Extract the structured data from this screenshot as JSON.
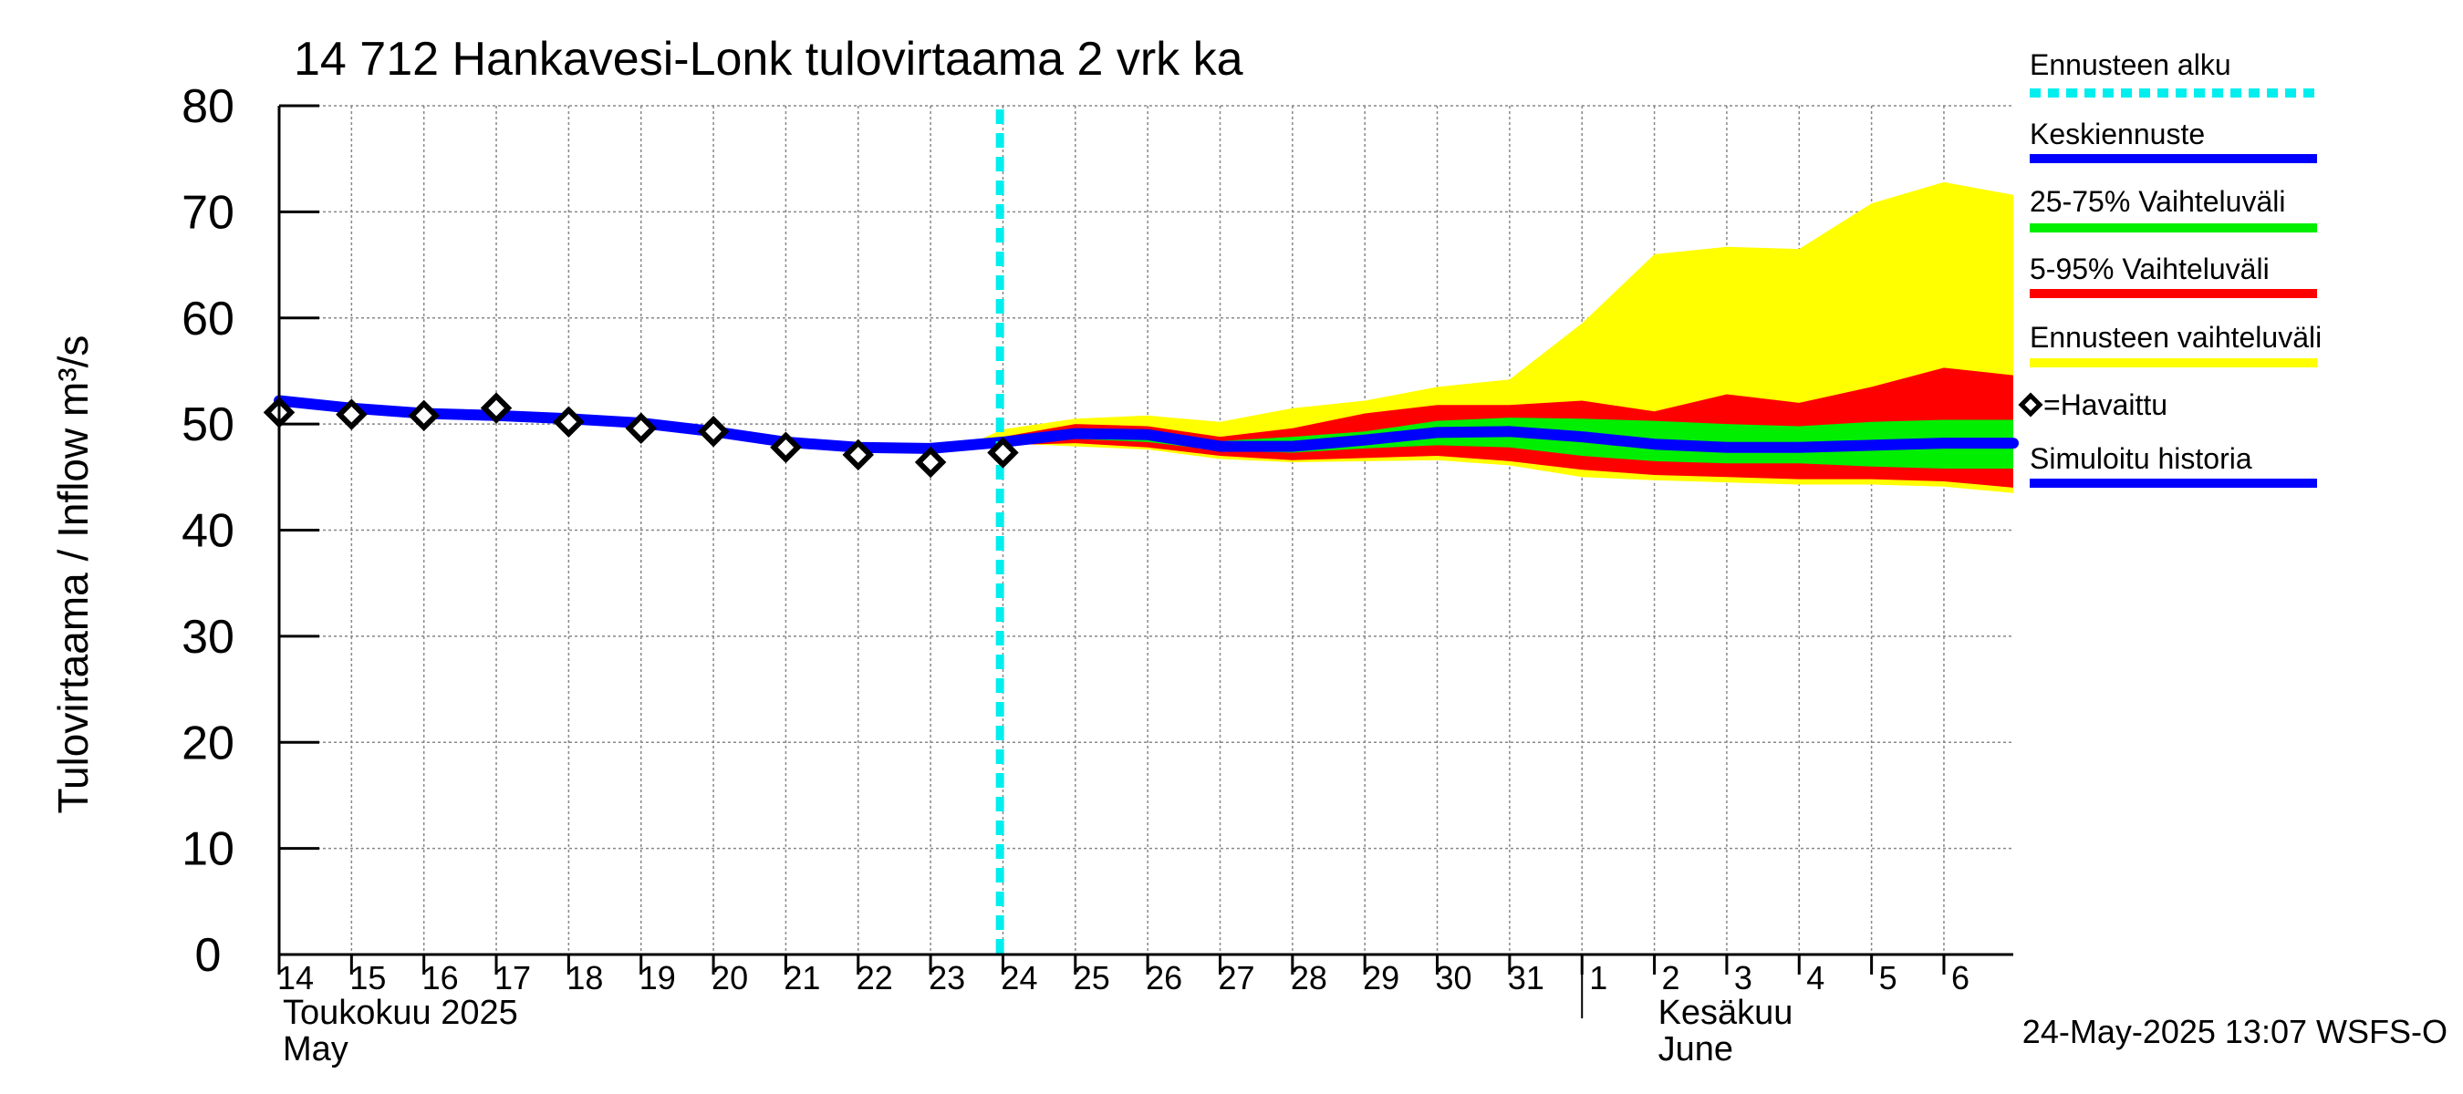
{
  "chart_data": {
    "type": "area",
    "title": "14 712 Hankavesi-Lonk tulovirtaama 2 vrk ka",
    "ylabel": "Tulovirtaama / Inflow    m³/s",
    "ylim": [
      0,
      80
    ],
    "yticks": [
      0,
      10,
      20,
      30,
      40,
      50,
      60,
      70,
      80
    ],
    "xlim": [
      "2025-05-14",
      "2025-06-06T23:00"
    ],
    "xticks": [
      {
        "date": "2025-05-14",
        "label": "14"
      },
      {
        "date": "2025-05-15",
        "label": "15"
      },
      {
        "date": "2025-05-16",
        "label": "16"
      },
      {
        "date": "2025-05-17",
        "label": "17"
      },
      {
        "date": "2025-05-18",
        "label": "18"
      },
      {
        "date": "2025-05-19",
        "label": "19"
      },
      {
        "date": "2025-05-20",
        "label": "20"
      },
      {
        "date": "2025-05-21",
        "label": "21"
      },
      {
        "date": "2025-05-22",
        "label": "22"
      },
      {
        "date": "2025-05-23",
        "label": "23"
      },
      {
        "date": "2025-05-24",
        "label": "24"
      },
      {
        "date": "2025-05-25",
        "label": "25"
      },
      {
        "date": "2025-05-26",
        "label": "26"
      },
      {
        "date": "2025-05-27",
        "label": "27"
      },
      {
        "date": "2025-05-28",
        "label": "28"
      },
      {
        "date": "2025-05-29",
        "label": "29"
      },
      {
        "date": "2025-05-30",
        "label": "30"
      },
      {
        "date": "2025-05-31",
        "label": "31"
      },
      {
        "date": "2025-06-01",
        "label": "1"
      },
      {
        "date": "2025-06-02",
        "label": "2"
      },
      {
        "date": "2025-06-03",
        "label": "3"
      },
      {
        "date": "2025-06-04",
        "label": "4"
      },
      {
        "date": "2025-06-05",
        "label": "5"
      },
      {
        "date": "2025-06-06",
        "label": "6"
      }
    ],
    "month_labels": [
      {
        "date": "2025-05-14",
        "fi": "Toukokuu  2025",
        "en": "May"
      },
      {
        "date": "2025-06-02",
        "fi": "Kesäkuu",
        "en": "June"
      }
    ],
    "month_divider": "2025-06-01",
    "grid": true,
    "forecast_start": "2025-05-23T23:00",
    "series": [
      {
        "name": "Ennusteen vaihteluväli",
        "kind": "band",
        "color": "#ffff00",
        "x": [
          "2025-05-23T12:00",
          "2025-05-24",
          "2025-05-25",
          "2025-05-26",
          "2025-05-27",
          "2025-05-28",
          "2025-05-29",
          "2025-05-30",
          "2025-05-31",
          "2025-06-01",
          "2025-06-02",
          "2025-06-03",
          "2025-06-04",
          "2025-06-05",
          "2025-06-06",
          "2025-06-06T23:00"
        ],
        "upper": [
          48.0,
          49.5,
          50.5,
          50.8,
          50.2,
          51.5,
          52.2,
          53.5,
          54.2,
          59.5,
          66.0,
          66.7,
          66.5,
          70.8,
          72.8,
          71.6
        ],
        "lower": [
          47.8,
          48.2,
          47.9,
          47.6,
          46.7,
          46.4,
          46.5,
          46.6,
          46.1,
          45.0,
          44.7,
          44.5,
          44.3,
          44.3,
          44.1,
          43.5
        ]
      },
      {
        "name": "5-95% Vaihteluväli",
        "kind": "band",
        "color": "#ff0000",
        "x": [
          "2025-05-24",
          "2025-05-25",
          "2025-05-26",
          "2025-05-27",
          "2025-05-28",
          "2025-05-29",
          "2025-05-30",
          "2025-05-31",
          "2025-06-01",
          "2025-06-02",
          "2025-06-03",
          "2025-06-04",
          "2025-06-05",
          "2025-06-06",
          "2025-06-06T23:00"
        ],
        "upper": [
          48.8,
          50.0,
          49.8,
          48.8,
          49.6,
          51.0,
          51.8,
          51.8,
          52.2,
          51.2,
          52.8,
          52.0,
          53.5,
          55.3,
          54.6
        ],
        "lower": [
          48.0,
          48.2,
          47.8,
          47.0,
          46.6,
          46.8,
          47.0,
          46.5,
          45.7,
          45.2,
          45.0,
          44.8,
          44.8,
          44.6,
          44.0
        ]
      },
      {
        "name": "25-75% Vaihteluväli",
        "kind": "band",
        "color": "#00ee00",
        "x": [
          "2025-05-24",
          "2025-05-25",
          "2025-05-26",
          "2025-05-27",
          "2025-05-28",
          "2025-05-29",
          "2025-05-30",
          "2025-05-31",
          "2025-06-01",
          "2025-06-02",
          "2025-06-03",
          "2025-06-04",
          "2025-06-05",
          "2025-06-06",
          "2025-06-06T23:00"
        ],
        "upper": [
          48.4,
          49.3,
          49.4,
          48.4,
          48.8,
          49.3,
          50.3,
          50.6,
          50.5,
          50.3,
          50.0,
          49.8,
          50.2,
          50.4,
          50.4
        ],
        "lower": [
          48.1,
          48.6,
          48.3,
          47.5,
          47.3,
          47.7,
          48.0,
          47.8,
          47.0,
          46.5,
          46.3,
          46.3,
          46.0,
          45.8,
          45.8
        ]
      },
      {
        "name": "Keskiennuste",
        "kind": "line",
        "color": "#0000ff",
        "x": [
          "2025-05-24",
          "2025-05-25",
          "2025-05-26",
          "2025-05-27",
          "2025-05-28",
          "2025-05-29",
          "2025-05-30",
          "2025-05-31",
          "2025-06-01",
          "2025-06-02",
          "2025-06-03",
          "2025-06-04",
          "2025-06-05",
          "2025-06-06",
          "2025-06-06T23:00"
        ],
        "y": [
          48.3,
          49.1,
          49.0,
          47.9,
          47.9,
          48.5,
          49.2,
          49.3,
          48.8,
          48.1,
          47.8,
          47.8,
          48.0,
          48.2,
          48.2
        ]
      },
      {
        "name": "Simuloitu historia",
        "kind": "line",
        "color": "#0000ff",
        "x": [
          "2025-05-14",
          "2025-05-15",
          "2025-05-16",
          "2025-05-17",
          "2025-05-18",
          "2025-05-19",
          "2025-05-20",
          "2025-05-21",
          "2025-05-22",
          "2025-05-23",
          "2025-05-24"
        ],
        "y": [
          52.2,
          51.5,
          51.0,
          50.8,
          50.5,
          50.1,
          49.3,
          48.3,
          47.8,
          47.7,
          48.3
        ]
      },
      {
        "name": "=Havaittu",
        "kind": "markers",
        "color": "#000000",
        "x": [
          "2025-05-14",
          "2025-05-15",
          "2025-05-16",
          "2025-05-17",
          "2025-05-18",
          "2025-05-19",
          "2025-05-20",
          "2025-05-21",
          "2025-05-22",
          "2025-05-23",
          "2025-05-24"
        ],
        "y": [
          51.1,
          50.9,
          50.8,
          51.5,
          50.2,
          49.6,
          49.3,
          47.8,
          47.1,
          46.4,
          47.3
        ]
      }
    ],
    "legend": {
      "placement": "right",
      "items": [
        {
          "label": "Ennusteen alku",
          "color": "#00eeee",
          "style": "dashed"
        },
        {
          "label": "Keskiennuste",
          "color": "#0000ff",
          "style": "line"
        },
        {
          "label": "25-75% Vaihteluväli",
          "color": "#00ee00",
          "style": "line"
        },
        {
          "label": "5-95% Vaihteluväli",
          "color": "#ff0000",
          "style": "line"
        },
        {
          "label": "Ennusteen vaihteluväli",
          "color": "#ffff00",
          "style": "line"
        },
        {
          "label": "=Havaittu",
          "color": "#000000",
          "style": "diamond"
        },
        {
          "label": "Simuloitu historia",
          "color": "#0000ff",
          "style": "line"
        }
      ]
    },
    "footer": "24-May-2025 13:07 WSFS-O"
  }
}
